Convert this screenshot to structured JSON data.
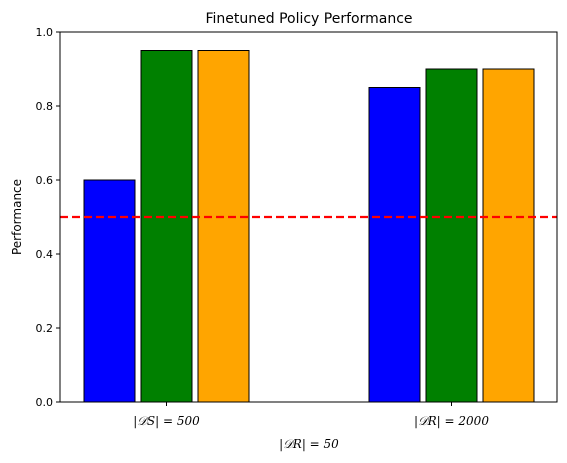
{
  "chart_data": {
    "type": "bar",
    "title": "Finetuned Policy Performance",
    "xlabel": "|𝒟R| = 50",
    "ylabel": "Performance",
    "ylim": [
      0,
      1.0
    ],
    "yticks": [
      "0.0",
      "0.2",
      "0.4",
      "0.6",
      "0.8",
      "1.0"
    ],
    "categories": [
      "|𝒟S| = 500",
      "|𝒟R| = 2000"
    ],
    "series": [
      {
        "color": "#0000ff",
        "values": [
          0.6,
          0.85
        ]
      },
      {
        "color": "#008000",
        "values": [
          0.95,
          0.9
        ]
      },
      {
        "color": "#ffa500",
        "values": [
          0.95,
          0.9
        ]
      }
    ],
    "reference_line": {
      "y": 0.5,
      "color": "#ff0000",
      "style": "dashed"
    },
    "grid": false,
    "legend": false
  }
}
